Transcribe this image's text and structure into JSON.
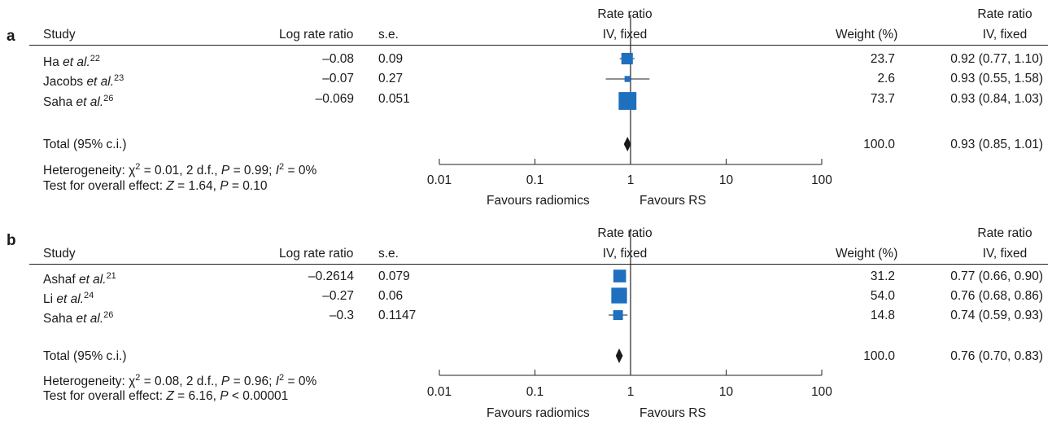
{
  "colors": {
    "box": "#1f6fbf",
    "diamond": "#1a1a1a",
    "axis": "#222222"
  },
  "chart_data": [
    {
      "panel": "a",
      "type": "forest",
      "headers": {
        "study": "Study",
        "log_rate_ratio": "Log rate ratio",
        "se": "s.e.",
        "plot_title_line1": "Rate ratio",
        "plot_title_line2": "IV, fixed",
        "weight": "Weight (%)",
        "ci_title_line1": "Rate ratio",
        "ci_title_line2": "IV, fixed"
      },
      "studies": [
        {
          "name": "Ha",
          "etal": "et al.",
          "ref": "22",
          "log_rate_ratio": "–0.08",
          "se": "0.09",
          "weight": "23.7",
          "ci_text": "0.92 (0.77, 1.10)",
          "rr": 0.92,
          "lo": 0.77,
          "hi": 1.1,
          "w": 23.7
        },
        {
          "name": "Jacobs",
          "etal": "et al.",
          "ref": "23",
          "log_rate_ratio": "–0.07",
          "se": "0.27",
          "weight": "2.6",
          "ci_text": "0.93 (0.55, 1.58)",
          "rr": 0.93,
          "lo": 0.55,
          "hi": 1.58,
          "w": 2.6
        },
        {
          "name": "Saha",
          "etal": "et al.",
          "ref": "26",
          "log_rate_ratio": "–0.069",
          "se": "0.051",
          "weight": "73.7",
          "ci_text": "0.93 (0.84, 1.03)",
          "rr": 0.93,
          "lo": 0.84,
          "hi": 1.03,
          "w": 73.7
        }
      ],
      "total": {
        "label": "Total (95% c.i.)",
        "weight": "100.0",
        "ci_text": "0.93 (0.85, 1.01)",
        "rr": 0.93,
        "lo": 0.85,
        "hi": 1.01
      },
      "heterogeneity": {
        "prefix": "Heterogeneity: ",
        "chi": "χ",
        "chi_sup": "2",
        "chi_rest": " = 0.01, 2 d.f., ",
        "p": "P",
        "p_rest": " = 0.99; ",
        "i": "I",
        "i_sup": "2",
        "i_rest": " = 0%"
      },
      "overall": {
        "prefix": "Test for overall effect: ",
        "z": "Z",
        "z_rest": " = 1.64, ",
        "p": "P",
        "p_rest": " = 0.10"
      },
      "axis": {
        "scale": "log",
        "ticks": [
          0.01,
          0.1,
          1,
          10,
          100
        ],
        "tick_labels": [
          "0.01",
          "0.1",
          "1",
          "10",
          "100"
        ],
        "favours_left": "Favours radiomics",
        "favours_right": "Favours RS"
      }
    },
    {
      "panel": "b",
      "type": "forest",
      "headers": {
        "study": "Study",
        "log_rate_ratio": "Log rate ratio",
        "se": "s.e.",
        "plot_title_line1": "Rate ratio",
        "plot_title_line2": "IV, fixed",
        "weight": "Weight (%)",
        "ci_title_line1": "Rate ratio",
        "ci_title_line2": "IV, fixed"
      },
      "studies": [
        {
          "name": "Ashaf",
          "etal": "et al.",
          "ref": "21",
          "log_rate_ratio": "–0.2614",
          "se": "0.079",
          "weight": "31.2",
          "ci_text": "0.77 (0.66, 0.90)",
          "rr": 0.77,
          "lo": 0.66,
          "hi": 0.9,
          "w": 31.2
        },
        {
          "name": "Li",
          "etal": "et al.",
          "ref": "24",
          "log_rate_ratio": "–0.27",
          "se": "0.06",
          "weight": "54.0",
          "ci_text": "0.76 (0.68, 0.86)",
          "rr": 0.76,
          "lo": 0.68,
          "hi": 0.86,
          "w": 54.0
        },
        {
          "name": "Saha",
          "etal": "et al.",
          "ref": "26",
          "log_rate_ratio": "–0.3",
          "se": "0.1147",
          "weight": "14.8",
          "ci_text": "0.74 (0.59, 0.93)",
          "rr": 0.74,
          "lo": 0.59,
          "hi": 0.93,
          "w": 14.8
        }
      ],
      "total": {
        "label": "Total (95% c.i.)",
        "weight": "100.0",
        "ci_text": "0.76 (0.70, 0.83)",
        "rr": 0.76,
        "lo": 0.7,
        "hi": 0.83
      },
      "heterogeneity": {
        "prefix": "Heterogeneity: ",
        "chi": "χ",
        "chi_sup": "2",
        "chi_rest": " = 0.08, 2 d.f., ",
        "p": "P",
        "p_rest": " = 0.96; ",
        "i": "I",
        "i_sup": "2",
        "i_rest": " = 0%"
      },
      "overall": {
        "prefix": "Test for overall effect: ",
        "z": "Z",
        "z_rest": " = 6.16, ",
        "p": "P",
        "p_rest": " < 0.00001"
      },
      "axis": {
        "scale": "log",
        "ticks": [
          0.01,
          0.1,
          1,
          10,
          100
        ],
        "tick_labels": [
          "0.01",
          "0.1",
          "1",
          "10",
          "100"
        ],
        "favours_left": "Favours radiomics",
        "favours_right": "Favours RS"
      }
    }
  ]
}
